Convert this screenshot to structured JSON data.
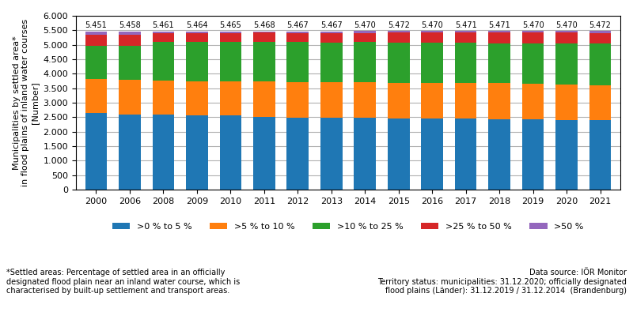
{
  "chart_data": {
    "type": "bar",
    "stacked": true,
    "categories": [
      "2000",
      "2006",
      "2008",
      "2009",
      "2010",
      "2011",
      "2012",
      "2013",
      "2014",
      "2015",
      "2016",
      "2017",
      "2018",
      "2019",
      "2020",
      "2021"
    ],
    "series": [
      {
        "name": ">0 % to 5 %",
        "values": [
          2650,
          2600,
          2580,
          2565,
          2560,
          2515,
          2495,
          2485,
          2475,
          2460,
          2450,
          2445,
          2435,
          2425,
          2410,
          2395
        ]
      },
      {
        "name": ">5 % to 10 %",
        "values": [
          1170,
          1195,
          1175,
          1185,
          1190,
          1215,
          1220,
          1225,
          1230,
          1235,
          1240,
          1240,
          1235,
          1230,
          1225,
          1218
        ]
      },
      {
        "name": ">10 % to 25 %",
        "values": [
          1155,
          1158,
          1338,
          1342,
          1340,
          1362,
          1374,
          1376,
          1385,
          1385,
          1380,
          1384,
          1388,
          1392,
          1415,
          1435
        ]
      },
      {
        "name": ">25 % to 50 %",
        "values": [
          370,
          397,
          313,
          312,
          320,
          322,
          318,
          317,
          322,
          334,
          347,
          354,
          361,
          367,
          365,
          365
        ]
      },
      {
        "name": ">50 %",
        "values": [
          106,
          108,
          55,
          60,
          55,
          54,
          60,
          64,
          58,
          58,
          53,
          48,
          52,
          56,
          55,
          59
        ]
      }
    ],
    "totals": [
      5451,
      5458,
      5461,
      5464,
      5465,
      5468,
      5467,
      5467,
      5470,
      5472,
      5470,
      5471,
      5471,
      5470,
      5470,
      5472
    ],
    "total_labels": [
      "5.451",
      "5.458",
      "5.461",
      "5.464",
      "5.465",
      "5.468",
      "5.467",
      "5.467",
      "5.470",
      "5.472",
      "5.470",
      "5.471",
      "5.471",
      "5.470",
      "5.470",
      "5.472"
    ],
    "y_label": "Municipalities by settled area*\nin flood plains of inland water courses\n[Number]",
    "ylim": [
      0,
      6000
    ],
    "yticks": [
      0,
      500,
      {
        "value": 1000,
        "label": "1.000"
      },
      {
        "value": 1500,
        "label": "1.500"
      },
      {
        "value": 2000,
        "label": "2.000"
      },
      {
        "value": 2500,
        "label": "2.500"
      },
      {
        "value": 3000,
        "label": "3.000"
      },
      {
        "value": 3500,
        "label": "3.500"
      },
      {
        "value": 4000,
        "label": "4.000"
      },
      {
        "value": 4500,
        "label": "4.500"
      },
      {
        "value": 5000,
        "label": "5.000"
      },
      {
        "value": 5500,
        "label": "5.500"
      },
      {
        "value": 6000,
        "label": "6.000"
      }
    ],
    "grid": true,
    "legend": "upper center",
    "annotations": [
      "*Settled areas: Percentage of settled area in an officially\ndesignated flood plain near an inland water course, which is\ncharacterised by built-up settlement and transport areas.",
      "Data source: IÖR Monitor\nTerritory status: municipalities: 31.12.2020; officially designated\nflood plains (Länder): 31.12.2019 / 31.12.2014  (Brandenburg)"
    ]
  }
}
